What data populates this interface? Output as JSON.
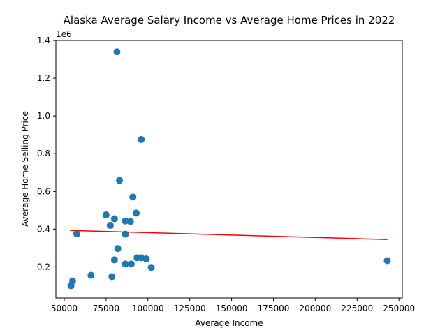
{
  "chart_data": {
    "type": "scatter",
    "title": "Alaska Average Salary Income vs Average Home Prices in 2022",
    "xlabel": "Average Income",
    "ylabel": "Average Home Selling Price",
    "y_offset_label": "1e6",
    "xlim": [
      45000,
      252000
    ],
    "ylim": [
      0.035,
      1.4
    ],
    "x_ticks": [
      50000,
      75000,
      100000,
      125000,
      150000,
      175000,
      200000,
      225000,
      250000
    ],
    "x_tick_labels": [
      "50000",
      "75000",
      "100000",
      "125000",
      "150000",
      "175000",
      "200000",
      "225000",
      "250000"
    ],
    "y_ticks": [
      0.2,
      0.4,
      0.6,
      0.8,
      1.0,
      1.2,
      1.4
    ],
    "y_tick_labels": [
      "0.2",
      "0.4",
      "0.6",
      "0.8",
      "1.0",
      "1.2",
      "1.4"
    ],
    "grid": false,
    "series": [
      {
        "marker": "circle",
        "color": "#1f77b4",
        "points": [
          {
            "x": 54000,
            "y": 0.1
          },
          {
            "x": 55000,
            "y": 0.125
          },
          {
            "x": 57500,
            "y": 0.375
          },
          {
            "x": 66000,
            "y": 0.155
          },
          {
            "x": 75000,
            "y": 0.475
          },
          {
            "x": 77500,
            "y": 0.42
          },
          {
            "x": 78500,
            "y": 0.148
          },
          {
            "x": 80000,
            "y": 0.455
          },
          {
            "x": 80000,
            "y": 0.237
          },
          {
            "x": 81500,
            "y": 1.34
          },
          {
            "x": 82000,
            "y": 0.297
          },
          {
            "x": 83000,
            "y": 0.658
          },
          {
            "x": 86500,
            "y": 0.443
          },
          {
            "x": 86500,
            "y": 0.373
          },
          {
            "x": 86500,
            "y": 0.215
          },
          {
            "x": 89500,
            "y": 0.44
          },
          {
            "x": 90000,
            "y": 0.215
          },
          {
            "x": 91000,
            "y": 0.57
          },
          {
            "x": 93000,
            "y": 0.485
          },
          {
            "x": 93500,
            "y": 0.248
          },
          {
            "x": 96000,
            "y": 0.875
          },
          {
            "x": 96000,
            "y": 0.248
          },
          {
            "x": 99000,
            "y": 0.242
          },
          {
            "x": 102000,
            "y": 0.197
          },
          {
            "x": 243000,
            "y": 0.233
          }
        ]
      },
      {
        "type": "line",
        "color": "#ff0000",
        "x": [
          53500,
          243000
        ],
        "y": [
          0.393,
          0.345
        ]
      }
    ]
  }
}
